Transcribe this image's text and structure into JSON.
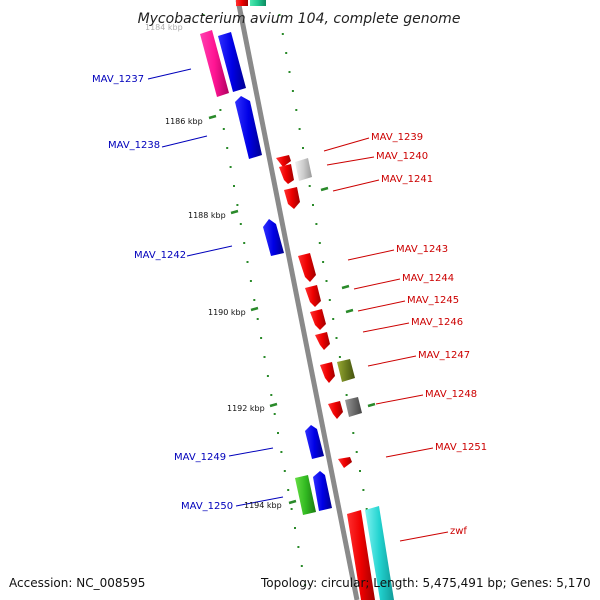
{
  "title": "Mycobacterium avium 104, complete genome",
  "top_fragment": "1184 kbp",
  "accession": "Accession: NC_008595",
  "summary": "Topology: circular; Length: 5,475,491 bp; Genes: 5,170",
  "colors": {
    "backbone": "#8a8a8a",
    "tick": "#2a8a2a",
    "label_left": "#0000bb",
    "label_right": "#cc0000"
  },
  "ticks": [
    {
      "label": "1186 kbp",
      "pos": 1186
    },
    {
      "label": "1188 kbp",
      "pos": 1188
    },
    {
      "label": "1190 kbp",
      "pos": 1190
    },
    {
      "label": "1192 kbp",
      "pos": 1192
    },
    {
      "label": "1194 kbp",
      "pos": 1194
    }
  ],
  "genes_left": [
    {
      "name": "MAV_1237",
      "color": "#0000ee"
    },
    {
      "name": "MAV_1238",
      "color": "#0000ee"
    },
    {
      "name": "MAV_1242",
      "color": "#0000ee"
    },
    {
      "name": "MAV_1249",
      "color": "#0000ee"
    },
    {
      "name": "MAV_1250",
      "color": "#0000ee"
    }
  ],
  "genes_right": [
    {
      "name": "MAV_1239",
      "color": "#ee0000"
    },
    {
      "name": "MAV_1240",
      "color": "#ee0000"
    },
    {
      "name": "MAV_1241",
      "color": "#ee0000"
    },
    {
      "name": "MAV_1243",
      "color": "#ee0000"
    },
    {
      "name": "MAV_1244",
      "color": "#ee0000"
    },
    {
      "name": "MAV_1245",
      "color": "#ee0000"
    },
    {
      "name": "MAV_1246",
      "color": "#ee0000"
    },
    {
      "name": "MAV_1247",
      "color": "#ee0000"
    },
    {
      "name": "MAV_1248",
      "color": "#ee0000"
    },
    {
      "name": "MAV_1251",
      "color": "#ee0000"
    },
    {
      "name": "zwf",
      "color": "#ee0000"
    }
  ]
}
